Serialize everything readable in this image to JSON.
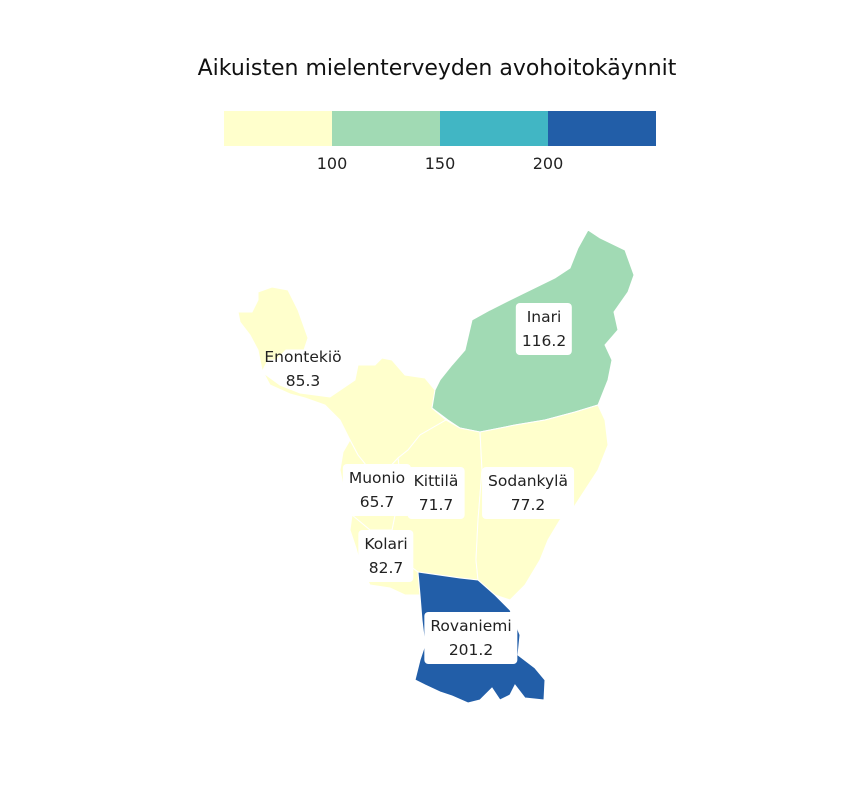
{
  "title": "Aikuisten mielenterveyden avohoitokäynnit",
  "legend": {
    "colors": [
      "#ffffcc",
      "#a1dab4",
      "#41b6c4",
      "#225ea8"
    ],
    "ticks": [
      "100",
      "150",
      "200"
    ]
  },
  "regions": [
    {
      "name": "Enontekiö",
      "value": "85.3",
      "color": "#ffffcc"
    },
    {
      "name": "Inari",
      "value": "116.2",
      "color": "#a1dab4"
    },
    {
      "name": "Muonio",
      "value": "65.7",
      "color": "#ffffcc"
    },
    {
      "name": "Kittilä",
      "value": "71.7",
      "color": "#ffffcc"
    },
    {
      "name": "Sodankylä",
      "value": "77.2",
      "color": "#ffffcc"
    },
    {
      "name": "Kolari",
      "value": "82.7",
      "color": "#ffffcc"
    },
    {
      "name": "Rovaniemi",
      "value": "201.2",
      "color": "#225ea8"
    }
  ]
}
